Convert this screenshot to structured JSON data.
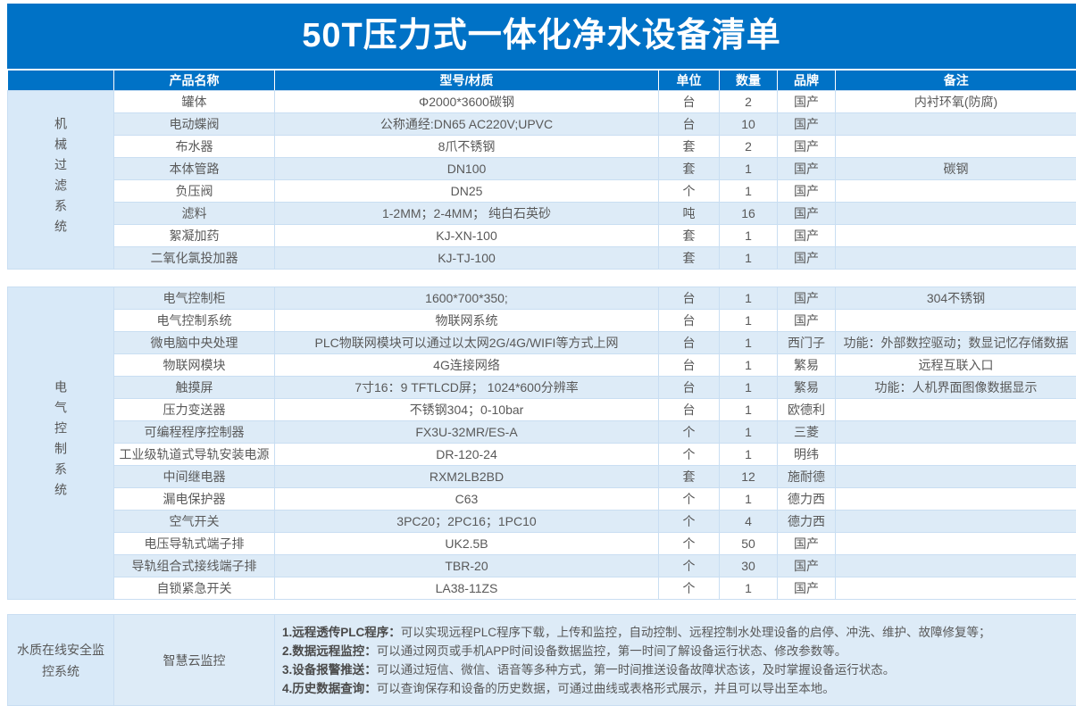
{
  "title": "50T压力式一体化净水设备清单",
  "columns": [
    "产品名称",
    "型号/材质",
    "单位",
    "数量",
    "品牌",
    "备注"
  ],
  "sections": [
    {
      "group": "机械过滤系统",
      "rows": [
        [
          "罐体",
          "Φ2000*3600碳钢",
          "台",
          "2",
          "国产",
          "内衬环氧(防腐)"
        ],
        [
          "电动蝶阀",
          "公称通经:DN65 AC220V;UPVC",
          "台",
          "10",
          "国产",
          ""
        ],
        [
          "布水器",
          "8爪不锈钢",
          "套",
          "2",
          "国产",
          ""
        ],
        [
          "本体管路",
          "DN100",
          "套",
          "1",
          "国产",
          "碳钢"
        ],
        [
          "负压阀",
          "DN25",
          "个",
          "1",
          "国产",
          ""
        ],
        [
          "滤料",
          "1-2MM；2-4MM； 纯白石英砂",
          "吨",
          "16",
          "国产",
          ""
        ],
        [
          "絮凝加药",
          "KJ-XN-100",
          "套",
          "1",
          "国产",
          ""
        ],
        [
          "二氧化氯投加器",
          "KJ-TJ-100",
          "套",
          "1",
          "国产",
          ""
        ]
      ]
    },
    {
      "group": "电气控制系统",
      "rows": [
        [
          "电气控制柜",
          "1600*700*350;",
          "台",
          "1",
          "国产",
          "304不锈钢"
        ],
        [
          "电气控制系统",
          "物联网系统",
          "台",
          "1",
          "国产",
          ""
        ],
        [
          "微电脑中央处理",
          "PLC物联网模块可以通过以太网2G/4G/WIFI等方式上网",
          "台",
          "1",
          "西门子",
          "功能：外部数控驱动；数显记忆存储数据"
        ],
        [
          "物联网模块",
          "4G连接网络",
          "台",
          "1",
          "繁易",
          "远程互联入口"
        ],
        [
          "触摸屏",
          "7寸16：9 TFTLCD屏； 1024*600分辨率",
          "台",
          "1",
          "繁易",
          "功能：人机界面图像数据显示"
        ],
        [
          "压力变送器",
          "不锈钢304；0-10bar",
          "台",
          "1",
          "欧德利",
          ""
        ],
        [
          "可编程程序控制器",
          "FX3U-32MR/ES-A",
          "个",
          "1",
          "三菱",
          ""
        ],
        [
          "工业级轨道式导轨安装电源",
          "DR-120-24",
          "个",
          "1",
          "明纬",
          ""
        ],
        [
          "中间继电器",
          "RXM2LB2BD",
          "套",
          "12",
          "施耐德",
          ""
        ],
        [
          "漏电保护器",
          "C63",
          "个",
          "1",
          "德力西",
          ""
        ],
        [
          "空气开关",
          "3PC20；2PC16；1PC10",
          "个",
          "4",
          "德力西",
          ""
        ],
        [
          "电压导轨式端子排",
          "UK2.5B",
          "个",
          "50",
          "国产",
          ""
        ],
        [
          "导轨组合式接线端子排",
          "TBR-20",
          "个",
          "30",
          "国产",
          ""
        ],
        [
          "自锁紧急开关",
          "LA38-11ZS",
          "个",
          "1",
          "国产",
          ""
        ]
      ]
    }
  ],
  "monitor_section": {
    "group": "水质在线安全监控系统",
    "product": "智慧云监控",
    "features": [
      {
        "label": "1.远程透传PLC程序：",
        "text": "可以实现远程PLC程序下载，上传和监控，自动控制、远程控制水处理设备的启停、冲洗、维护、故障修复等；"
      },
      {
        "label": "2.数据远程监控：",
        "text": "可以通过网页或手机APP时间设备数据监控，第一时间了解设备运行状态、修改参数等。"
      },
      {
        "label": "3.设备报警推送：",
        "text": "可以通过短信、微信、语音等多种方式，第一时间推送设备故障状态该，及时掌握设备运行状态。"
      },
      {
        "label": "4.历史数据查询：",
        "text": "可以查询保存和设备的历史数据，可通过曲线或表格形式展示，并且可以导出至本地。"
      }
    ]
  },
  "colors": {
    "primary_blue": "#0072C6",
    "alt_row_blue": "#DDEBF7",
    "group_cell_blue": "#D8E9F8",
    "border_blue": "#C9DEF2",
    "text_gray": "#595959",
    "header_text": "#FFFFFF"
  }
}
